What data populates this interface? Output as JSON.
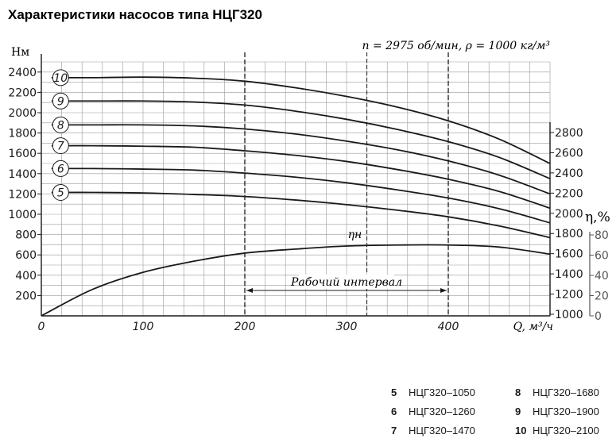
{
  "chart_data": {
    "type": "line",
    "title": "Характеристики насосов типа НЦГ320",
    "conditions": "n = 2975 об/мин, ρ = 1000 кг/м³",
    "xlabel": "Q, м³/ч",
    "ylabel_left": "Hм",
    "ylabel_eff": "η,%",
    "xlim": [
      0,
      500
    ],
    "ylim": [
      0,
      2400
    ],
    "x_ticks": [
      "0",
      "100",
      "200",
      "300",
      "400"
    ],
    "y_ticks_left": [
      "200",
      "400",
      "600",
      "800",
      "1000",
      "1200",
      "1400",
      "1600",
      "1800",
      "2000",
      "2200",
      "2400"
    ],
    "y_ticks_right": [
      "1000",
      "1200",
      "1400",
      "1600",
      "1800",
      "2000",
      "2200",
      "2400",
      "2600",
      "2800"
    ],
    "eff_ticks": [
      "0",
      "20",
      "40",
      "60",
      "80"
    ],
    "grid": true,
    "working_range": {
      "label": "Рабочий интервал",
      "x_start": 200,
      "x_end": 400
    },
    "nominal_point": {
      "label": "ηн",
      "x": 320
    },
    "efficiency_curve": {
      "name": "ηн",
      "x": [
        0,
        50,
        100,
        150,
        200,
        250,
        300,
        350,
        400,
        450,
        500
      ],
      "values": [
        0,
        26,
        43,
        54,
        62,
        66,
        69,
        70,
        70,
        68,
        61
      ]
    },
    "series": [
      {
        "label": "5",
        "x": [
          0,
          50,
          100,
          150,
          200,
          250,
          300,
          350,
          400,
          450,
          500
        ],
        "values": [
          1215,
          1215,
          1210,
          1195,
          1175,
          1140,
          1095,
          1040,
          975,
          885,
          770
        ]
      },
      {
        "label": "6",
        "x": [
          0,
          50,
          100,
          150,
          200,
          250,
          300,
          350,
          400,
          450,
          500
        ],
        "values": [
          1450,
          1450,
          1445,
          1435,
          1405,
          1365,
          1310,
          1240,
          1160,
          1055,
          915
        ]
      },
      {
        "label": "7",
        "x": [
          0,
          50,
          100,
          150,
          200,
          250,
          300,
          350,
          400,
          450,
          500
        ],
        "values": [
          1675,
          1675,
          1670,
          1660,
          1625,
          1580,
          1520,
          1440,
          1345,
          1225,
          1060
        ]
      },
      {
        "label": "8",
        "x": [
          0,
          50,
          100,
          150,
          200,
          250,
          300,
          350,
          400,
          450,
          500
        ],
        "values": [
          1880,
          1880,
          1880,
          1870,
          1840,
          1790,
          1720,
          1635,
          1525,
          1385,
          1200
        ]
      },
      {
        "label": "9",
        "x": [
          0,
          50,
          100,
          150,
          200,
          250,
          300,
          350,
          400,
          450,
          500
        ],
        "values": [
          2115,
          2115,
          2115,
          2105,
          2075,
          2015,
          1935,
          1835,
          1715,
          1560,
          1350
        ]
      },
      {
        "label": "10",
        "x": [
          0,
          50,
          100,
          150,
          200,
          250,
          300,
          350,
          400,
          450,
          500
        ],
        "values": [
          2345,
          2345,
          2350,
          2340,
          2310,
          2245,
          2160,
          2055,
          1920,
          1740,
          1500
        ]
      }
    ]
  },
  "legend": [
    {
      "num": "5",
      "model": "НЦГ320–1050"
    },
    {
      "num": "6",
      "model": "НЦГ320–1260"
    },
    {
      "num": "7",
      "model": "НЦГ320–1470"
    },
    {
      "num": "8",
      "model": "НЦГ320–1680"
    },
    {
      "num": "9",
      "model": "НЦГ320–1900"
    },
    {
      "num": "10",
      "model": "НЦГ320–2100"
    }
  ],
  "colors": {
    "line": "#1a1a1a",
    "grid": "#9a9a9a",
    "eff_axis": "#555555"
  }
}
